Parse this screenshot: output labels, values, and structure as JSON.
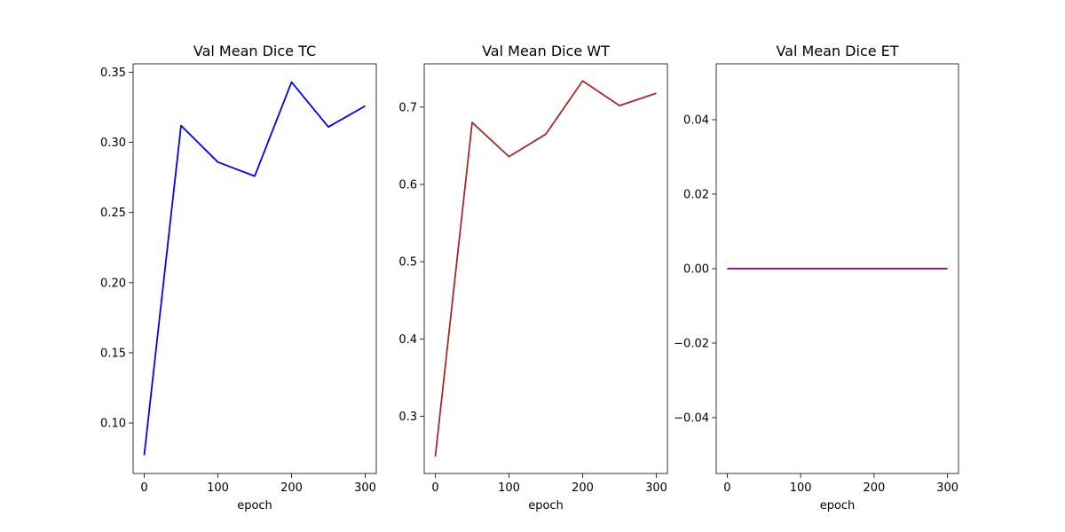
{
  "chart_data": [
    {
      "type": "line",
      "title": "Val Mean Dice TC",
      "xlabel": "epoch",
      "ylabel": "",
      "x": [
        0,
        50,
        100,
        150,
        200,
        250,
        300
      ],
      "series": [
        {
          "values": [
            0.077,
            0.312,
            0.286,
            0.276,
            0.343,
            0.311,
            0.326
          ],
          "color": "#0000ff"
        }
      ],
      "xlim": [
        -15,
        315
      ],
      "ylim": [
        0.064,
        0.356
      ],
      "xticks": [
        0,
        100,
        200,
        300
      ],
      "xtick_labels": [
        "0",
        "100",
        "200",
        "300"
      ],
      "yticks": [
        0.1,
        0.15,
        0.2,
        0.25,
        0.3,
        0.35
      ],
      "ytick_labels": [
        "0.10",
        "0.15",
        "0.20",
        "0.25",
        "0.30",
        "0.35"
      ],
      "grid": false,
      "legend": "none"
    },
    {
      "type": "line",
      "title": "Val Mean Dice WT",
      "xlabel": "epoch",
      "ylabel": "",
      "x": [
        0,
        50,
        100,
        150,
        200,
        250,
        300
      ],
      "series": [
        {
          "values": [
            0.248,
            0.68,
            0.636,
            0.665,
            0.734,
            0.702,
            0.718
          ],
          "color": "#a52a2a"
        }
      ],
      "xlim": [
        -15,
        315
      ],
      "ylim": [
        0.226,
        0.756
      ],
      "xticks": [
        0,
        100,
        200,
        300
      ],
      "xtick_labels": [
        "0",
        "100",
        "200",
        "300"
      ],
      "yticks": [
        0.3,
        0.4,
        0.5,
        0.6,
        0.7
      ],
      "ytick_labels": [
        "0.3",
        "0.4",
        "0.5",
        "0.6",
        "0.7"
      ],
      "grid": false,
      "legend": "none"
    },
    {
      "type": "line",
      "title": "Val Mean Dice ET",
      "xlabel": "epoch",
      "ylabel": "",
      "x": [
        0,
        50,
        100,
        150,
        200,
        250,
        300
      ],
      "series": [
        {
          "values": [
            0,
            0,
            0,
            0,
            0,
            0,
            0
          ],
          "color": "#800080"
        }
      ],
      "xlim": [
        -15,
        315
      ],
      "ylim": [
        -0.055,
        0.055
      ],
      "xticks": [
        0,
        100,
        200,
        300
      ],
      "xtick_labels": [
        "0",
        "100",
        "200",
        "300"
      ],
      "yticks": [
        -0.04,
        -0.02,
        0.0,
        0.02,
        0.04
      ],
      "ytick_labels": [
        "−0.04",
        "−0.02",
        "0.00",
        "0.02",
        "0.04"
      ],
      "grid": false,
      "legend": "none"
    }
  ]
}
